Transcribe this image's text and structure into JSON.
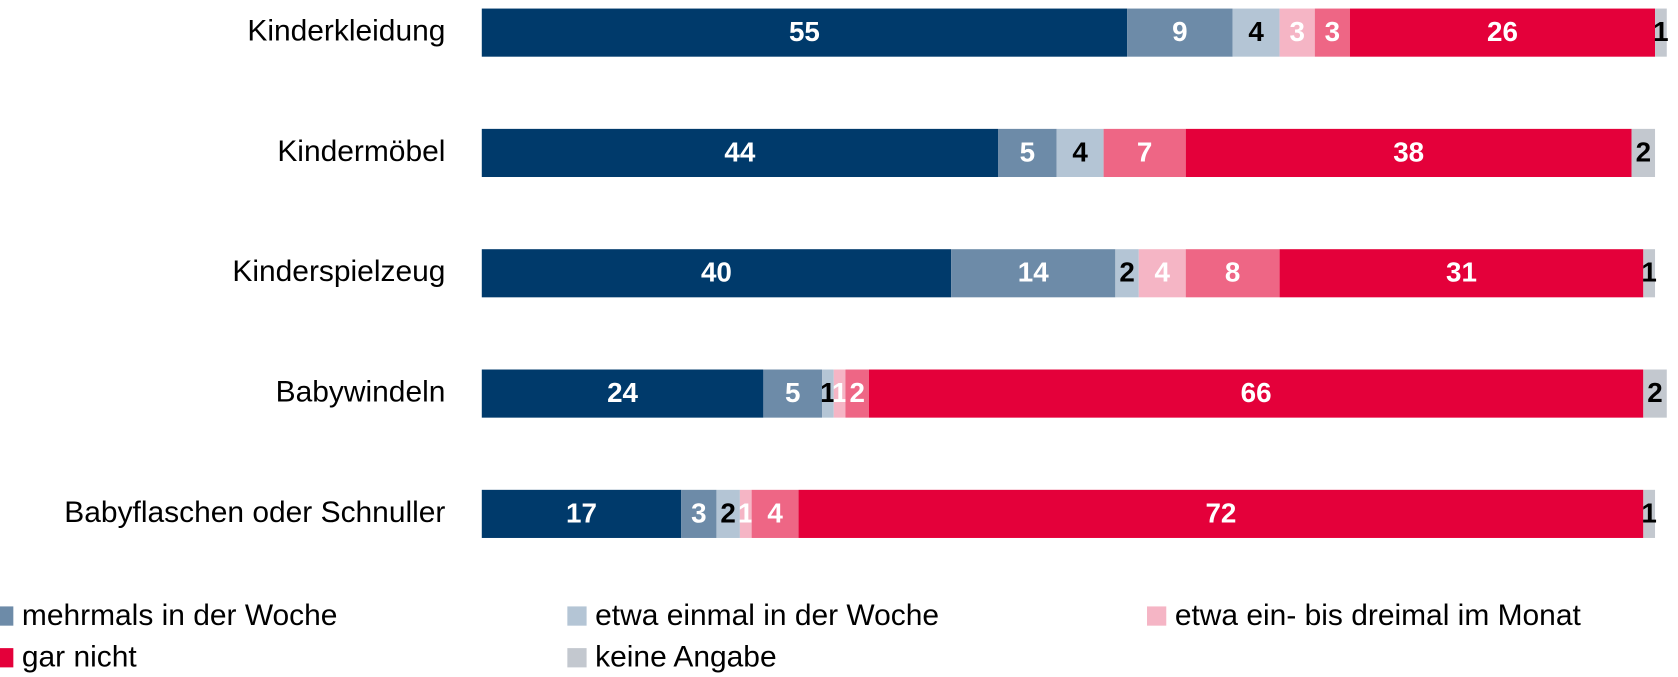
{
  "chart_data": {
    "type": "bar",
    "orientation": "horizontal",
    "stacked": true,
    "categories": [
      "Kinderkleidung",
      "Kindermöbel",
      "Kinderspielzeug",
      "Babywindeln",
      "Babyflaschen oder Schnuller"
    ],
    "series": [
      {
        "color": "#003a6b",
        "values": [
          55,
          44,
          40,
          24,
          17
        ]
      },
      {
        "name": "mehrmals in der Woche",
        "color": "#6d8ba8",
        "values": [
          9,
          5,
          14,
          5,
          3
        ]
      },
      {
        "name": "etwa einmal in der Woche",
        "color": "#b4c5d5",
        "values": [
          4,
          4,
          2,
          1,
          2
        ]
      },
      {
        "name": "etwa ein- bis dreimal im Monat",
        "color": "#f5b5c5",
        "values": [
          3,
          0,
          4,
          1,
          1
        ]
      },
      {
        "color": "#ee6685",
        "values": [
          3,
          7,
          8,
          2,
          4
        ]
      },
      {
        "name": "gar nicht",
        "color": "#e4003a",
        "values": [
          26,
          38,
          31,
          66,
          72
        ]
      },
      {
        "name": "keine Angabe",
        "color": "#c3c8cf",
        "values": [
          1,
          2,
          1,
          2,
          1
        ]
      }
    ]
  }
}
